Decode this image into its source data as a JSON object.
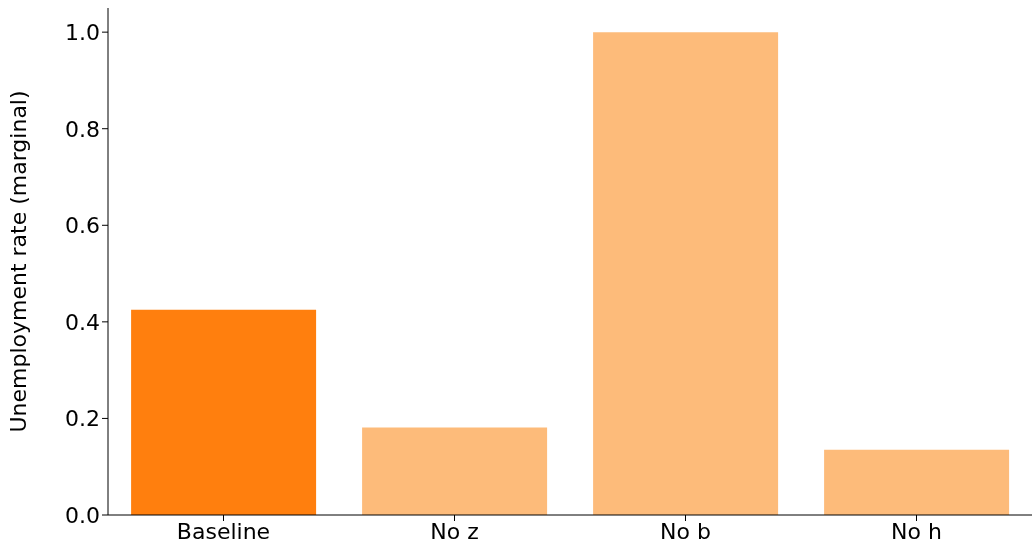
{
  "chart_data": {
    "type": "bar",
    "ylabel": "Unemployment rate (marginal)",
    "categories": [
      "Baseline",
      "No z",
      "No b",
      "No h"
    ],
    "values": [
      0.425,
      0.181,
      1.0,
      0.135
    ],
    "colors": [
      "#ff7f0e",
      "#fdbb7a",
      "#fdbb7a",
      "#fdbb7a"
    ],
    "ylim": [
      0,
      1.05
    ],
    "yticks": [
      {
        "value": 0,
        "label": "0.0"
      },
      {
        "value": 0.2,
        "label": "0.2"
      },
      {
        "value": 0.4,
        "label": "0.4"
      },
      {
        "value": 0.6,
        "label": "0.6"
      },
      {
        "value": 0.8,
        "label": "0.8"
      },
      {
        "value": 1,
        "label": "1.0"
      }
    ],
    "grid": false,
    "legend": false
  }
}
